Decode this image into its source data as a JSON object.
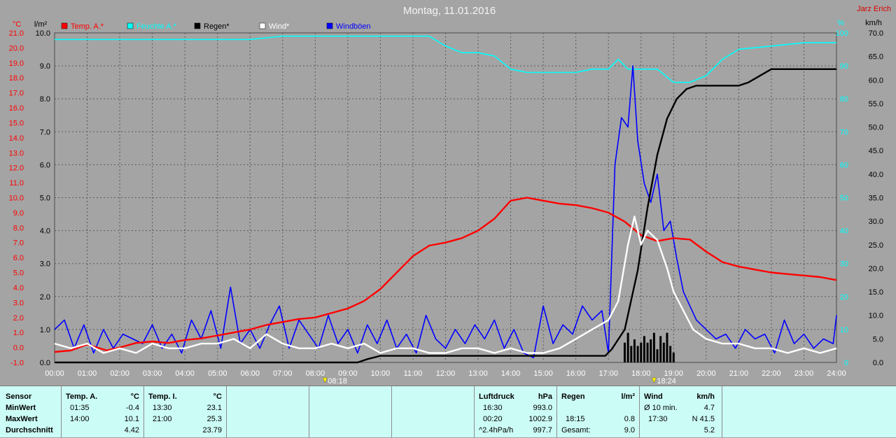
{
  "title": "Montag, 11.01.2016",
  "author": "Jarz Erich",
  "units": {
    "left_temp": "°C",
    "left_rain": "l/m²",
    "right_humidity": "%",
    "right_wind": "km/h"
  },
  "legend": [
    {
      "label": "Temp. A.*",
      "color": "#ff0000"
    },
    {
      "label": "Feuchte A.*",
      "color": "#00ffff"
    },
    {
      "label": "Regen*",
      "color": "#000000"
    },
    {
      "label": "Wind*",
      "color": "#ffffff"
    },
    {
      "label": "Windböen",
      "color": "#0000ff"
    }
  ],
  "markers": [
    {
      "label": "08:18",
      "time": 8.3
    },
    {
      "label": "18:24",
      "time": 18.4
    }
  ],
  "chart_data": {
    "type": "line",
    "x_range": [
      0,
      24
    ],
    "x_ticks": [
      "00:00",
      "01:00",
      "02:00",
      "03:00",
      "04:00",
      "05:00",
      "06:00",
      "07:00",
      "08:00",
      "09:00",
      "10:00",
      "11:00",
      "12:00",
      "13:00",
      "14:00",
      "15:00",
      "16:00",
      "17:00",
      "18:00",
      "19:00",
      "20:00",
      "21:00",
      "22:00",
      "23:00",
      "24:00"
    ],
    "axes": {
      "temp": {
        "range": [
          -1,
          21
        ],
        "ticks": [
          "-1.0",
          "0.0",
          "1.0",
          "2.0",
          "3.0",
          "4.0",
          "5.0",
          "6.0",
          "7.0",
          "8.0",
          "9.0",
          "10.0",
          "11.0",
          "12.0",
          "13.0",
          "14.0",
          "15.0",
          "16.0",
          "17.0",
          "18.0",
          "19.0",
          "20.0",
          "21.0"
        ]
      },
      "rain": {
        "range": [
          0,
          10
        ],
        "ticks": [
          "0.0",
          "1.0",
          "2.0",
          "3.0",
          "4.0",
          "5.0",
          "6.0",
          "7.0",
          "8.0",
          "9.0",
          "10.0"
        ]
      },
      "humidity": {
        "range": [
          0,
          100
        ],
        "ticks": [
          "0",
          "10",
          "20",
          "30",
          "40",
          "50",
          "60",
          "70",
          "80",
          "90",
          "100"
        ]
      },
      "wind": {
        "range": [
          0,
          70
        ],
        "ticks": [
          "0.0",
          "5.0",
          "10.0",
          "15.0",
          "20.0",
          "25.0",
          "30.0",
          "35.0",
          "40.0",
          "45.0",
          "50.0",
          "55.0",
          "60.0",
          "65.0",
          "70.0"
        ]
      }
    },
    "series": [
      {
        "name": "Temp. A.*",
        "axis": "temp",
        "color": "#ff0000",
        "x": [
          0,
          0.5,
          1,
          1.6,
          2,
          2.5,
          3,
          3.5,
          4,
          4.5,
          5,
          5.5,
          6,
          6.5,
          7,
          7.5,
          8,
          8.5,
          9,
          9.5,
          10,
          10.5,
          11,
          11.5,
          12,
          12.5,
          13,
          13.5,
          14,
          14.5,
          15,
          15.5,
          16,
          16.5,
          17,
          17.5,
          18,
          18.5,
          19,
          19.5,
          20,
          20.5,
          21,
          21.5,
          22,
          22.5,
          23,
          23.5,
          24
        ],
        "y": [
          -0.3,
          -0.2,
          0.2,
          -0.2,
          0.0,
          0.3,
          0.4,
          0.3,
          0.5,
          0.6,
          0.8,
          1.0,
          1.2,
          1.5,
          1.7,
          1.9,
          2.0,
          2.3,
          2.6,
          3.1,
          3.9,
          5.0,
          6.1,
          6.8,
          7.0,
          7.3,
          7.8,
          8.6,
          9.8,
          10.0,
          9.8,
          9.6,
          9.5,
          9.3,
          9.0,
          8.4,
          7.5,
          7.1,
          7.3,
          7.2,
          6.4,
          5.7,
          5.4,
          5.2,
          5.0,
          4.9,
          4.8,
          4.7,
          4.5
        ]
      },
      {
        "name": "Feuchte A.*",
        "axis": "humidity",
        "color": "#00ffff",
        "x": [
          0,
          1,
          2,
          3,
          4,
          5,
          6,
          7,
          8,
          9,
          10,
          11,
          11.5,
          12,
          12.5,
          13,
          13.5,
          14,
          14.5,
          15,
          15.5,
          16,
          16.5,
          17,
          17.3,
          17.6,
          18,
          18.5,
          19,
          19.5,
          20,
          20.5,
          21,
          22,
          23,
          24
        ],
        "y": [
          98,
          98,
          98,
          98,
          98,
          98,
          98,
          99,
          99,
          99,
          99,
          99,
          99,
          96,
          94,
          94,
          93,
          89,
          88,
          88,
          88,
          88,
          89,
          89,
          92,
          89,
          89,
          89,
          85,
          85,
          87,
          92,
          95,
          96,
          97,
          97
        ]
      },
      {
        "name": "Regen*",
        "axis": "rain",
        "color": "#000000",
        "x": [
          0,
          9.3,
          9.6,
          10,
          12,
          14,
          16,
          16.9,
          17.1,
          17.5,
          17.9,
          18.2,
          18.5,
          18.8,
          19.1,
          19.4,
          19.7,
          20,
          21,
          21.3,
          22,
          24
        ],
        "y": [
          0,
          0,
          0.1,
          0.2,
          0.2,
          0.2,
          0.2,
          0.2,
          0.4,
          1.0,
          2.8,
          4.7,
          6.3,
          7.4,
          8.0,
          8.3,
          8.4,
          8.4,
          8.4,
          8.5,
          8.9,
          8.9
        ]
      },
      {
        "name": "Wind*",
        "axis": "wind",
        "color": "#ffffff",
        "x": [
          0,
          0.5,
          1,
          1.5,
          2,
          2.5,
          3,
          3.5,
          4,
          4.5,
          5,
          5.5,
          6,
          6.5,
          7,
          7.5,
          8,
          8.5,
          9,
          9.5,
          10,
          10.5,
          11,
          11.5,
          12,
          12.5,
          13,
          13.5,
          14,
          14.5,
          15,
          15.5,
          16,
          16.5,
          17,
          17.3,
          17.6,
          17.8,
          18,
          18.2,
          18.5,
          18.8,
          19,
          19.3,
          19.6,
          20,
          20.5,
          21,
          21.5,
          22,
          22.5,
          23,
          23.5,
          24
        ],
        "y": [
          4,
          3,
          4,
          2,
          3,
          2,
          4,
          3,
          3,
          4,
          4,
          5,
          3,
          6,
          4,
          3,
          3,
          4,
          3,
          4,
          2,
          3,
          3,
          2,
          2,
          3,
          3,
          2,
          3,
          2,
          2,
          3,
          5,
          7,
          9,
          13,
          25,
          31,
          25,
          28,
          26,
          20,
          15,
          11,
          7,
          5,
          4,
          4,
          3,
          3,
          2,
          3,
          2,
          3
        ]
      },
      {
        "name": "Windböen",
        "axis": "wind",
        "color": "#0000ff",
        "x": [
          0,
          0.3,
          0.6,
          0.9,
          1.2,
          1.5,
          1.8,
          2.1,
          2.4,
          2.7,
          3,
          3.3,
          3.6,
          3.9,
          4.2,
          4.5,
          4.8,
          5.1,
          5.4,
          5.7,
          6,
          6.3,
          6.6,
          6.9,
          7.2,
          7.5,
          7.8,
          8.1,
          8.4,
          8.7,
          9,
          9.3,
          9.6,
          9.9,
          10.2,
          10.5,
          10.8,
          11.1,
          11.4,
          11.7,
          12,
          12.3,
          12.6,
          12.9,
          13.2,
          13.5,
          13.8,
          14.1,
          14.4,
          14.7,
          15,
          15.3,
          15.6,
          15.9,
          16.2,
          16.5,
          16.8,
          17,
          17.2,
          17.4,
          17.6,
          17.75,
          17.9,
          18.1,
          18.3,
          18.5,
          18.7,
          18.9,
          19.1,
          19.3,
          19.5,
          19.7,
          20,
          20.3,
          20.6,
          20.9,
          21.2,
          21.5,
          21.8,
          22.1,
          22.4,
          22.7,
          23,
          23.3,
          23.6,
          23.9,
          24
        ],
        "y": [
          7,
          9,
          3,
          8,
          2,
          7,
          3,
          6,
          5,
          4,
          8,
          3,
          6,
          2,
          9,
          5,
          11,
          3,
          16,
          4,
          7,
          3,
          8,
          12,
          3,
          9,
          6,
          3,
          10,
          4,
          7,
          2,
          8,
          4,
          9,
          3,
          6,
          2,
          10,
          5,
          3,
          7,
          4,
          8,
          5,
          9,
          3,
          7,
          2,
          1,
          12,
          4,
          8,
          6,
          12,
          9,
          11,
          2,
          42,
          52,
          50,
          63,
          47,
          38,
          34,
          40,
          28,
          30,
          22,
          15,
          12,
          9,
          7,
          5,
          6,
          3,
          7,
          5,
          6,
          2,
          9,
          4,
          6,
          3,
          5,
          4,
          10
        ]
      },
      {
        "name": "Regen bars",
        "axis": "rain",
        "color": "#000000",
        "kind": "bar",
        "x": [
          17.5,
          17.6,
          17.7,
          17.8,
          17.9,
          18.0,
          18.1,
          18.2,
          18.3,
          18.4,
          18.5,
          18.6,
          18.7,
          18.8,
          18.9,
          19.0
        ],
        "y": [
          0.6,
          0.9,
          0.5,
          0.7,
          0.5,
          0.6,
          0.8,
          0.6,
          0.7,
          0.9,
          0.4,
          0.8,
          0.6,
          0.9,
          0.5,
          0.3
        ]
      }
    ]
  },
  "table": {
    "sensor": {
      "header": "Sensor",
      "rows": [
        "MinWert",
        "MaxWert",
        "Durchschnitt"
      ]
    },
    "temp_a": {
      "header": "Temp. A.",
      "unit": "°C",
      "rows": [
        [
          "01:35",
          "-0.4"
        ],
        [
          "14:00",
          "10.1"
        ],
        [
          "",
          "4.42"
        ]
      ]
    },
    "temp_i": {
      "header": "Temp. I.",
      "unit": "°C",
      "rows": [
        [
          "13:30",
          "23.1"
        ],
        [
          "21:00",
          "25.3"
        ],
        [
          "",
          "23.79"
        ]
      ]
    },
    "luftdruck": {
      "header": "Luftdruck",
      "unit": "hPa",
      "rows": [
        [
          "16:30",
          "993.0"
        ],
        [
          "00:20",
          "1002.9"
        ],
        [
          "^2.4hPa/h",
          "997.7"
        ]
      ]
    },
    "regen": {
      "header": "Regen",
      "unit": "l/m²",
      "rows": [
        [
          "",
          ""
        ],
        [
          "18:15",
          "0.8"
        ],
        [
          "Gesamt:",
          "9.0"
        ]
      ]
    },
    "wind": {
      "header": "Wind",
      "unit": "km/h",
      "rows": [
        [
          "Ø 10 min.",
          "4.7"
        ],
        [
          "17:30",
          "N 41.5"
        ],
        [
          "",
          "5.2"
        ]
      ]
    }
  }
}
